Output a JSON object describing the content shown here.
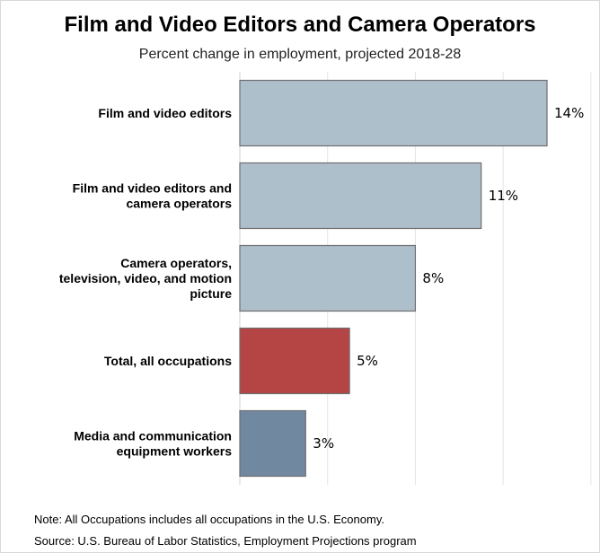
{
  "chart_data": {
    "type": "bar",
    "orientation": "horizontal",
    "title": "Film and Video Editors and Camera Operators",
    "subtitle": "Percent change in employment, projected 2018-28",
    "categories": [
      [
        "Film and video editors"
      ],
      [
        "Film and video editors and",
        "camera operators"
      ],
      [
        "Camera operators,",
        "television, video, and motion",
        "picture"
      ],
      [
        "Total, all occupations"
      ],
      [
        "Media and communication",
        "equipment workers"
      ]
    ],
    "values": [
      14,
      11,
      8,
      5,
      3
    ],
    "value_labels": [
      "14%",
      "11%",
      "8%",
      "5%",
      "3%"
    ],
    "colors": [
      "#aebfcc",
      "#aebfcc",
      "#aebfcc",
      "#b54444",
      "#7089a1"
    ],
    "xlim": [
      0,
      16
    ],
    "grid": true,
    "legend": "none"
  },
  "notes": {
    "note": "Note: All Occupations includes all occupations in the U.S. Economy.",
    "source": "Source: U.S. Bureau of Labor Statistics, Employment Projections program"
  }
}
